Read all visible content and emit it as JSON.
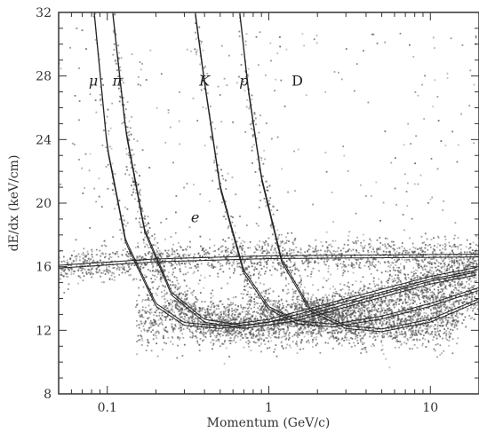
{
  "chart_data": {
    "type": "scatter",
    "title": "",
    "xlabel": "Momentum (GeV/c)",
    "ylabel": "dE/dx (keV/cm)",
    "x_scale": "log",
    "xlim": [
      0.05,
      20
    ],
    "ylim": [
      8,
      32
    ],
    "x_ticks": [
      {
        "value": 0.1,
        "label": "0.1"
      },
      {
        "value": 1,
        "label": "1"
      },
      {
        "value": 10,
        "label": "10"
      }
    ],
    "y_ticks": [
      {
        "value": 8,
        "label": "8"
      },
      {
        "value": 12,
        "label": "12"
      },
      {
        "value": 16,
        "label": "16"
      },
      {
        "value": 20,
        "label": "20"
      },
      {
        "value": 24,
        "label": "24"
      },
      {
        "value": 28,
        "label": "28"
      },
      {
        "value": 32,
        "label": "32"
      }
    ],
    "grid": false,
    "legend": "none",
    "point_color": "#555555",
    "curve_color": "#222222",
    "series": [
      {
        "name": "μ",
        "label_at": [
          0.082,
          27.4
        ],
        "curve": [
          [
            0.083,
            32
          ],
          [
            0.1,
            23.5
          ],
          [
            0.13,
            17.6
          ],
          [
            0.2,
            13.6
          ],
          [
            0.3,
            12.4
          ],
          [
            0.5,
            12.2
          ],
          [
            1,
            12.6
          ],
          [
            3,
            13.9
          ],
          [
            10,
            15.3
          ],
          [
            20,
            15.9
          ]
        ]
      },
      {
        "name": "π",
        "label_at": [
          0.115,
          27.4
        ],
        "curve": [
          [
            0.108,
            32
          ],
          [
            0.13,
            24.6
          ],
          [
            0.17,
            18.3
          ],
          [
            0.25,
            14.3
          ],
          [
            0.4,
            12.6
          ],
          [
            0.7,
            12.2
          ],
          [
            1.5,
            12.7
          ],
          [
            4,
            13.9
          ],
          [
            10,
            15.0
          ],
          [
            20,
            15.6
          ]
        ]
      },
      {
        "name": "K",
        "label_at": [
          0.4,
          27.4
        ],
        "curve": [
          [
            0.35,
            32
          ],
          [
            0.4,
            27.6
          ],
          [
            0.5,
            21.0
          ],
          [
            0.7,
            15.7
          ],
          [
            1,
            13.4
          ],
          [
            1.5,
            12.5
          ],
          [
            2.5,
            12.3
          ],
          [
            5,
            12.8
          ],
          [
            10,
            13.6
          ],
          [
            20,
            14.6
          ]
        ]
      },
      {
        "name": "p",
        "label_at": [
          0.7,
          27.4
        ],
        "curve": [
          [
            0.66,
            32
          ],
          [
            0.75,
            27.0
          ],
          [
            0.9,
            21.6
          ],
          [
            1.2,
            16.4
          ],
          [
            1.8,
            13.3
          ],
          [
            3,
            12.2
          ],
          [
            5,
            12.0
          ],
          [
            10,
            12.6
          ],
          [
            20,
            13.9
          ]
        ]
      },
      {
        "name": "D",
        "label_at": [
          1.5,
          27.4
        ],
        "curve": []
      },
      {
        "name": "e",
        "label_at": [
          0.35,
          18.8
        ],
        "curve": [
          [
            0.05,
            16.0
          ],
          [
            0.2,
            16.4
          ],
          [
            1,
            16.6
          ],
          [
            20,
            16.7
          ]
        ]
      }
    ]
  }
}
